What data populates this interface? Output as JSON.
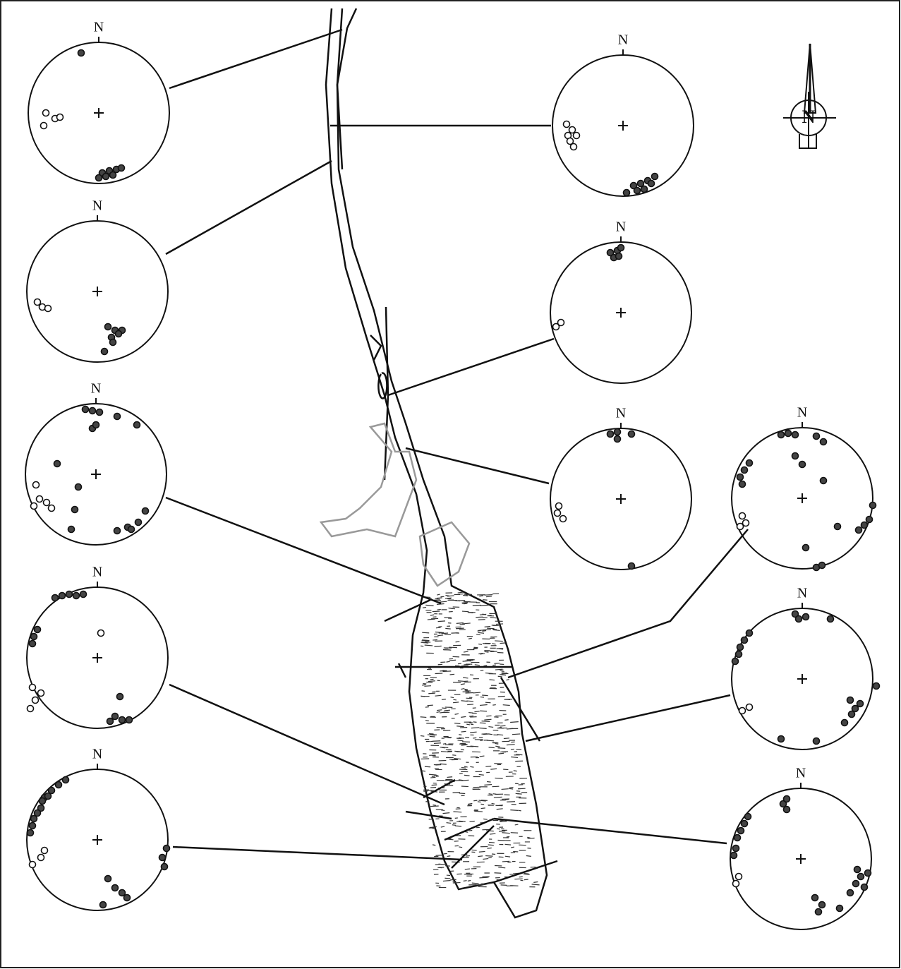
{
  "stereonets": [
    {
      "label": "N"
    },
    {
      "label": "N"
    },
    {
      "label": "N"
    },
    {
      "label": "N"
    },
    {
      "label": "N"
    },
    {
      "label": "N"
    },
    {
      "label": "N"
    },
    {
      "label": "N"
    },
    {
      "label": "N"
    },
    {
      "label": "N"
    },
    {
      "label": "N"
    }
  ],
  "compass": {
    "label": "N"
  }
}
